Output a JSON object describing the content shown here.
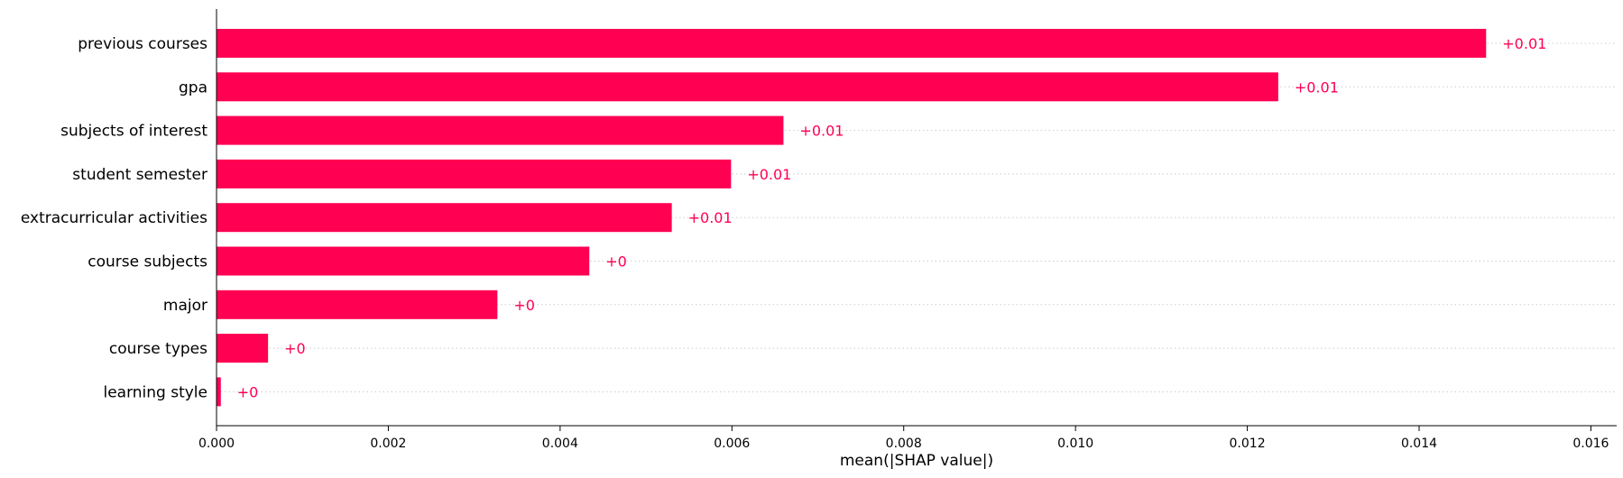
{
  "chart_data": {
    "type": "bar",
    "orientation": "horizontal",
    "title": "",
    "xlabel": "mean(|SHAP value|)",
    "ylabel": "",
    "xlim": [
      0,
      0.0163
    ],
    "x_ticks": [
      "0.000",
      "0.002",
      "0.004",
      "0.006",
      "0.008",
      "0.010",
      "0.012",
      "0.014",
      "0.016"
    ],
    "x_tick_values": [
      0,
      0.002,
      0.004,
      0.006,
      0.008,
      0.01,
      0.012,
      0.014,
      0.016
    ],
    "categories": [
      "previous courses",
      "gpa",
      "subjects of interest",
      "student semester",
      "extracurricular activities",
      "course subjects",
      "major",
      "course types",
      "learning style"
    ],
    "values": [
      0.01478,
      0.01236,
      0.0066,
      0.00599,
      0.0053,
      0.00434,
      0.00327,
      0.0006,
      5e-05
    ],
    "data_labels": [
      "+0.01",
      "+0.01",
      "+0.01",
      "+0.01",
      "+0.01",
      "+0",
      "+0",
      "+0",
      "+0"
    ],
    "bar_color": "#ff0052",
    "label_color": "#ff0052",
    "grid": "horizontal dotted",
    "legend": "none"
  }
}
